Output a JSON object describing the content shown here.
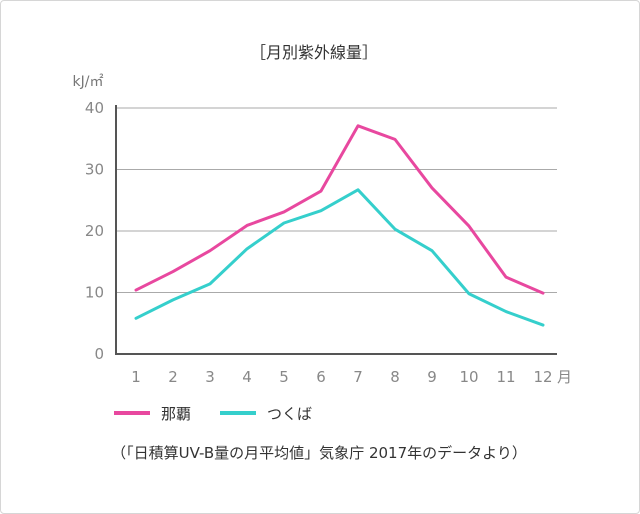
{
  "chart_data": {
    "type": "line",
    "title": "［月別紫外線量］",
    "ylabel": "kJ/㎡",
    "xlabel_suffix": "月",
    "categories": [
      "1",
      "2",
      "3",
      "4",
      "5",
      "6",
      "7",
      "8",
      "9",
      "10",
      "11",
      "12"
    ],
    "yticks": [
      "0",
      "10",
      "20",
      "30",
      "40"
    ],
    "ylim": [
      0,
      40
    ],
    "grid": true,
    "legend_position": "bottom-left",
    "series": [
      {
        "name": "那覇",
        "color": "#e8489f",
        "values": [
          10.4,
          13.4,
          16.8,
          20.9,
          23.1,
          26.5,
          37.1,
          34.9,
          27.0,
          20.8,
          12.5,
          9.9
        ]
      },
      {
        "name": "つくば",
        "color": "#35cfcc",
        "values": [
          5.8,
          8.8,
          11.4,
          17.1,
          21.3,
          23.3,
          26.7,
          20.3,
          16.8,
          9.8,
          6.9,
          4.7
        ]
      }
    ],
    "source": "（「日積算UV-B量の月平均値」気象庁 2017年のデータより）"
  }
}
